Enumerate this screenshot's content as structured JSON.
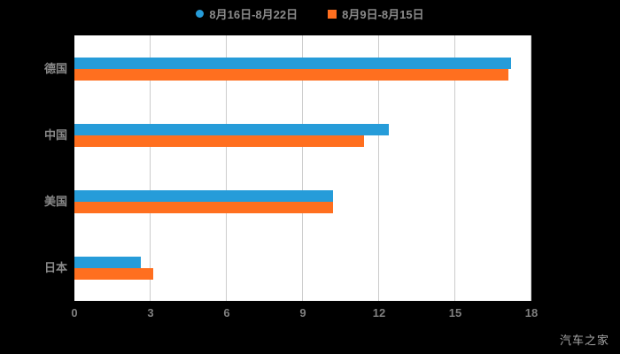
{
  "page": {
    "background": "#000000",
    "plot_background": "#ffffff",
    "watermark": "汽车之家"
  },
  "chart_data": {
    "type": "bar",
    "orientation": "horizontal",
    "title": "",
    "categories": [
      "德国",
      "中国",
      "美国",
      "日本"
    ],
    "series": [
      {
        "name": "8月16日-8月22日",
        "marker": "circle",
        "color": "#269CD9",
        "values": [
          17.2,
          12.4,
          10.2,
          2.6
        ]
      },
      {
        "name": "8月9日-8月15日",
        "marker": "square",
        "color": "#FF6F1F",
        "values": [
          17.1,
          11.4,
          10.2,
          3.1
        ]
      }
    ],
    "xlim": [
      0,
      18
    ],
    "xticks": [
      "0",
      "3",
      "6",
      "9",
      "12",
      "15",
      "18"
    ],
    "grid": true,
    "gridline_color": "#cccccc",
    "legend_position": "top"
  }
}
